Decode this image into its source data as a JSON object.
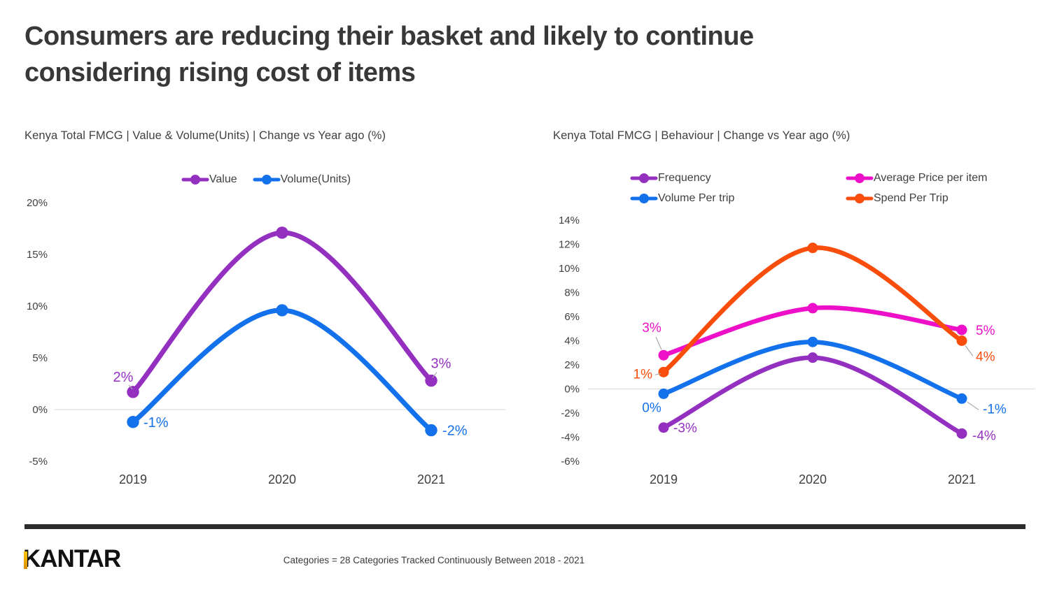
{
  "slide": {
    "title_lines": [
      "Consumers are reducing their basket and likely to continue",
      "considering rising cost of items"
    ],
    "logo_text": "KANTAR",
    "footer_note": "Categories = 28 Categories Tracked Continuously Between 2018 - 2021"
  },
  "colors": {
    "purple": "#9330C0",
    "blue": "#1471EC",
    "magenta": "#EE10C8",
    "orange": "#F94D0C",
    "grid": "#D9D9D9",
    "leader": "#A8A8A8",
    "axis_text": "#404040",
    "year_text": "#3f3f3f"
  },
  "chart_data": [
    {
      "type": "line",
      "title": "Kenya Total FMCG | Value & Volume(Units) | Change vs Year ago (%)",
      "categories": [
        "2019",
        "2020",
        "2021"
      ],
      "series": [
        {
          "name": "Value",
          "color_key": "purple",
          "values": [
            1.7,
            17.1,
            2.8
          ],
          "point_labels": [
            "2%",
            null,
            "3%"
          ]
        },
        {
          "name": "Volume(Units)",
          "color_key": "blue",
          "values": [
            -1.2,
            9.6,
            -2.0
          ],
          "point_labels": [
            "-1%",
            null,
            "-2%"
          ]
        }
      ],
      "ylim": [
        -5,
        20
      ],
      "yticks": [
        "20%",
        "15%",
        "10%",
        "5%",
        "0%",
        "-5%"
      ],
      "grid": "zero-line-only",
      "legend_position": "top-center"
    },
    {
      "type": "line",
      "title": "Kenya Total FMCG | Behaviour | Change vs Year ago (%)",
      "categories": [
        "2019",
        "2020",
        "2021"
      ],
      "series": [
        {
          "name": "Frequency",
          "color_key": "purple",
          "values": [
            -3.2,
            2.6,
            -3.7
          ],
          "point_labels": [
            "-3%",
            null,
            "-4%"
          ]
        },
        {
          "name": "Average Price per item",
          "color_key": "magenta",
          "values": [
            2.8,
            6.7,
            4.9
          ],
          "point_labels": [
            "3%",
            null,
            "5%"
          ]
        },
        {
          "name": "Volume Per trip",
          "color_key": "blue",
          "values": [
            -0.4,
            3.9,
            -0.8
          ],
          "point_labels": [
            "0%",
            null,
            "-1%"
          ]
        },
        {
          "name": "Spend Per Trip",
          "color_key": "orange",
          "values": [
            1.4,
            11.7,
            4.0
          ],
          "point_labels": [
            "1%",
            null,
            "4%"
          ]
        }
      ],
      "ylim": [
        -6,
        14
      ],
      "yticks": [
        "14%",
        "12%",
        "10%",
        "8%",
        "6%",
        "4%",
        "2%",
        "0%",
        "-2%",
        "-4%",
        "-6%"
      ],
      "grid": "zero-line-only",
      "legend_position": "top-two-columns"
    }
  ]
}
